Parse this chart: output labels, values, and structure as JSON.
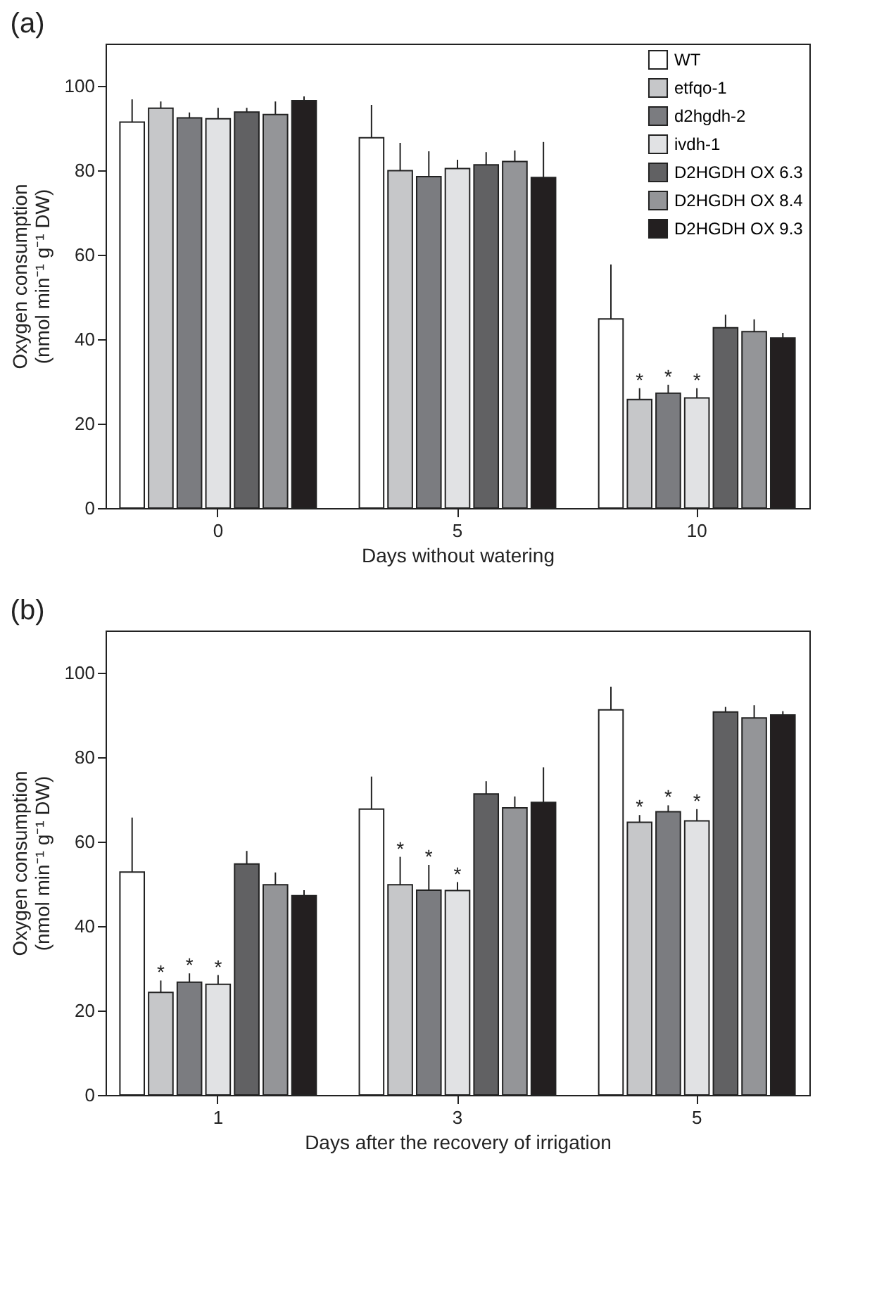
{
  "chart_data": [
    {
      "type": "bar",
      "title": "(a)",
      "xlabel": "Days without watering",
      "ylabel": "Oxygen consumption\n(nmol min⁻¹ g⁻¹ DW)",
      "categories": [
        "0",
        "5",
        "10"
      ],
      "ylim": [
        0,
        110
      ],
      "yticks": [
        0,
        20,
        40,
        60,
        80,
        100
      ],
      "legend": "top right",
      "series": [
        {
          "name": "WT",
          "color": "#ffffff",
          "values": [
            91.4,
            87.7,
            44.8
          ],
          "errors": [
            [
              91.4,
              96.8
            ],
            [
              87.7,
              95.5
            ],
            [
              44.8,
              57.7
            ]
          ]
        },
        {
          "name": "etfqo-1",
          "color": "#c6c7c9",
          "values": [
            94.7,
            79.9,
            25.7
          ],
          "errors": [
            [
              94.7,
              96.3
            ],
            [
              79.9,
              86.5
            ],
            [
              25.7,
              28.4
            ]
          ],
          "value_labels": [
            null,
            null,
            "*"
          ]
        },
        {
          "name": "d2hgdh-2",
          "color": "#7b7c80",
          "values": [
            92.4,
            78.5,
            27.2
          ],
          "errors": [
            [
              92.4,
              93.7
            ],
            [
              78.5,
              84.5
            ],
            [
              27.2,
              29.2
            ]
          ],
          "value_labels": [
            null,
            null,
            "*"
          ]
        },
        {
          "name": "ivdh-1",
          "color": "#e1e2e4",
          "values": [
            92.2,
            80.4,
            26.1
          ],
          "errors": [
            [
              92.2,
              94.8
            ],
            [
              80.4,
              82.5
            ],
            [
              26.1,
              28.4
            ]
          ],
          "value_labels": [
            null,
            null,
            "*"
          ]
        },
        {
          "name": "D2HGDH OX 6.3",
          "color": "#616163",
          "values": [
            93.8,
            81.3,
            42.7
          ],
          "errors": [
            [
              93.8,
              94.8
            ],
            [
              81.3,
              84.3
            ],
            [
              42.7,
              45.8
            ]
          ]
        },
        {
          "name": "D2HGDH OX 8.4",
          "color": "#949598",
          "values": [
            93.2,
            82.1,
            41.8
          ],
          "errors": [
            [
              93.2,
              96.3
            ],
            [
              82.1,
              84.7
            ],
            [
              41.8,
              44.7
            ]
          ]
        },
        {
          "name": "D2HGDH OX 9.3",
          "color": "#231f20",
          "values": [
            96.5,
            78.3,
            40.3
          ],
          "errors": [
            [
              96.5,
              97.5
            ],
            [
              78.3,
              86.7
            ],
            [
              40.3,
              41.5
            ]
          ]
        }
      ]
    },
    {
      "type": "bar",
      "title": "(b)",
      "xlabel": "Days after the recovery of irrigation",
      "ylabel": "Oxygen consumption\n(nmol min⁻¹ g⁻¹ DW)",
      "categories": [
        "1",
        "3",
        "5"
      ],
      "ylim": [
        0,
        110
      ],
      "yticks": [
        0,
        20,
        40,
        60,
        80,
        100
      ],
      "series": [
        {
          "color": "#ffffff",
          "values": [
            52.8,
            67.7,
            91.2
          ],
          "errors": [
            [
              52.8,
              65.7
            ],
            [
              67.7,
              75.4
            ],
            [
              91.2,
              96.7
            ]
          ]
        },
        {
          "color": "#c6c7c9",
          "values": [
            24.3,
            49.8,
            64.6
          ],
          "errors": [
            [
              24.3,
              27.1
            ],
            [
              49.8,
              56.4
            ],
            [
              64.6,
              66.3
            ]
          ],
          "value_labels": [
            "*",
            "*",
            "*"
          ]
        },
        {
          "color": "#7b7c80",
          "values": [
            26.7,
            48.5,
            67.1
          ],
          "errors": [
            [
              26.7,
              28.8
            ],
            [
              48.5,
              54.5
            ],
            [
              67.1,
              68.6
            ]
          ],
          "value_labels": [
            "*",
            "*",
            "*"
          ]
        },
        {
          "color": "#e1e2e4",
          "values": [
            26.2,
            48.4,
            64.9
          ],
          "errors": [
            [
              26.2,
              28.4
            ],
            [
              48.4,
              50.4
            ],
            [
              64.9,
              67.7
            ]
          ],
          "value_labels": [
            "*",
            "*",
            "*"
          ]
        },
        {
          "color": "#616163",
          "values": [
            54.7,
            71.3,
            90.7
          ],
          "errors": [
            [
              54.7,
              57.8
            ],
            [
              71.3,
              74.3
            ],
            [
              90.7,
              91.9
            ]
          ]
        },
        {
          "color": "#949598",
          "values": [
            49.8,
            68.0,
            89.3
          ],
          "errors": [
            [
              49.8,
              52.7
            ],
            [
              68.0,
              70.7
            ],
            [
              89.3,
              92.3
            ]
          ]
        },
        {
          "color": "#231f20",
          "values": [
            47.2,
            69.3,
            90.0
          ],
          "errors": [
            [
              47.2,
              48.5
            ],
            [
              69.3,
              77.6
            ],
            [
              90.0,
              90.9
            ]
          ]
        }
      ]
    }
  ]
}
